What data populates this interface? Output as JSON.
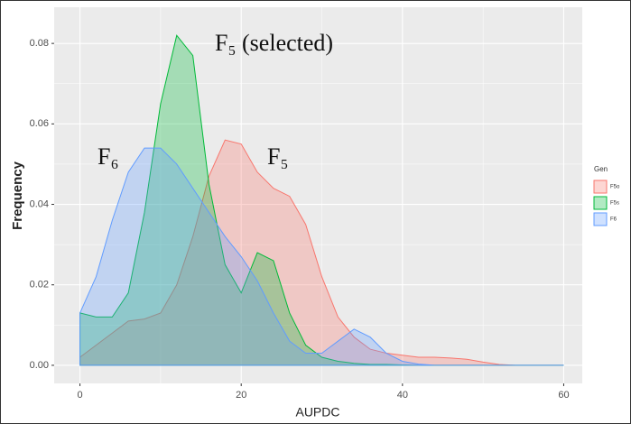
{
  "chart_data": {
    "type": "density",
    "x_label": "AUPDC",
    "y_label": "Frequency",
    "annotations": [
      "F₅ (selected)",
      "F₅",
      "F₆"
    ],
    "legend_title": "Gen",
    "x": [
      0,
      2,
      4,
      6,
      8,
      10,
      12,
      14,
      16,
      18,
      20,
      22,
      24,
      26,
      28,
      30,
      32,
      34,
      36,
      38,
      40,
      42,
      44,
      46,
      48,
      50,
      52,
      54,
      56,
      58,
      60
    ],
    "series": [
      {
        "name": "F5o",
        "color": "#F8766D",
        "values": [
          0.002,
          0.005,
          0.008,
          0.011,
          0.0115,
          0.013,
          0.02,
          0.032,
          0.047,
          0.056,
          0.055,
          0.048,
          0.044,
          0.042,
          0.035,
          0.022,
          0.012,
          0.007,
          0.004,
          0.003,
          0.0025,
          0.002,
          0.002,
          0.0018,
          0.0015,
          0.0008,
          0.0002,
          0,
          0,
          0,
          0
        ]
      },
      {
        "name": "F5s",
        "color": "#00BA38",
        "values": [
          0.013,
          0.012,
          0.012,
          0.018,
          0.038,
          0.065,
          0.082,
          0.077,
          0.045,
          0.025,
          0.018,
          0.028,
          0.026,
          0.013,
          0.005,
          0.002,
          0.001,
          0.0005,
          0.0002,
          0.0002,
          0.0001,
          0,
          0,
          0,
          0,
          0,
          0,
          0,
          0,
          0,
          0
        ]
      },
      {
        "name": "F6",
        "color": "#619CFF",
        "values": [
          0.013,
          0.022,
          0.036,
          0.048,
          0.054,
          0.054,
          0.05,
          0.044,
          0.038,
          0.032,
          0.027,
          0.021,
          0.013,
          0.006,
          0.003,
          0.003,
          0.006,
          0.009,
          0.007,
          0.003,
          0.001,
          0.0003,
          0,
          0,
          0,
          0,
          0,
          0,
          0,
          0,
          0
        ]
      }
    ],
    "xlim": [
      -3.2,
      62.3
    ],
    "ylim": [
      -0.0045,
      0.089
    ],
    "xticks": [
      0,
      20,
      40,
      60
    ],
    "yticks": [
      {
        "value": 0,
        "label": "0.00"
      },
      {
        "value": 0.02,
        "label": "0.02"
      },
      {
        "value": 0.04,
        "label": "0.04"
      },
      {
        "value": 0.06,
        "label": "0.06"
      },
      {
        "value": 0.08,
        "label": "0.08"
      }
    ],
    "grid": true,
    "legend": "right"
  }
}
